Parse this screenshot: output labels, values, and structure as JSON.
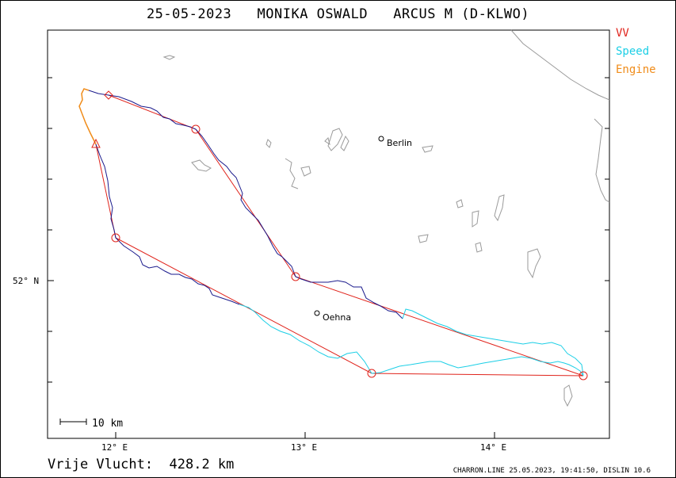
{
  "title": {
    "date": "25-05-2023",
    "pilot": "MONIKA OSWALD",
    "aircraft": "ARCUS M (D-KLWO)"
  },
  "legend": [
    {
      "label": "VV",
      "color": "#e0241c"
    },
    {
      "label": "Speed",
      "color": "#1ccfe6"
    },
    {
      "label": "Engine",
      "color": "#f08c1a"
    }
  ],
  "axes": {
    "x_ticks": [
      "12° E",
      "13° E",
      "14° E"
    ],
    "y_ticks": [
      "52° N"
    ]
  },
  "cities": [
    {
      "name": "Berlin"
    },
    {
      "name": "Oehna"
    }
  ],
  "scale_bar": {
    "label": "10 km"
  },
  "footer": {
    "distance": "Vrije Vlucht:  428.2 km",
    "meta": "CHARRON.LINE 25.05.2023, 19:41:50, DISLIN 10.6"
  },
  "colors": {
    "track_climb": "#1a1a8c",
    "track_speed": "#1ccfe6",
    "track_engine": "#f08c1a",
    "task_line": "#e0241c",
    "coastline": "#9a9a9a"
  }
}
